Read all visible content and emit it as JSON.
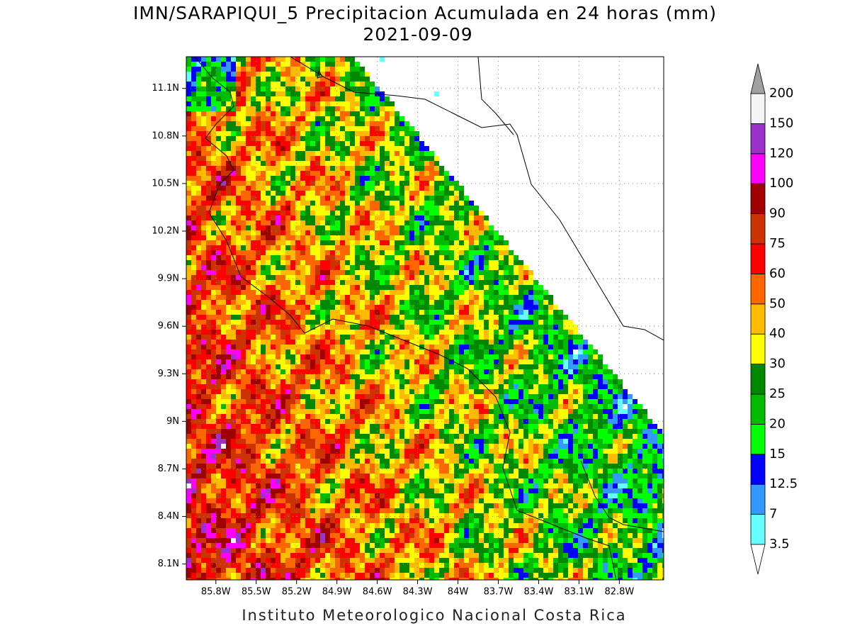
{
  "header": {
    "title": "IMN/SARAPIQUI_5 Precipitacion Acumulada en 24 horas (mm)",
    "subtitle": "2021-09-09"
  },
  "map": {
    "xlim": [
      -86.02,
      -82.47
    ],
    "ylim": [
      8.0,
      11.3
    ],
    "xticks": [
      {
        "value": -85.8,
        "label": "85.8W"
      },
      {
        "value": -85.5,
        "label": "85.5W"
      },
      {
        "value": -85.2,
        "label": "85.2W"
      },
      {
        "value": -84.9,
        "label": "84.9W"
      },
      {
        "value": -84.6,
        "label": "84.6W"
      },
      {
        "value": -84.3,
        "label": "84.3W"
      },
      {
        "value": -84.0,
        "label": "84W"
      },
      {
        "value": -83.7,
        "label": "83.7W"
      },
      {
        "value": -83.4,
        "label": "83.4W"
      },
      {
        "value": -83.1,
        "label": "83.1W"
      },
      {
        "value": -82.8,
        "label": "82.8W"
      }
    ],
    "yticks": [
      {
        "value": 8.1,
        "label": "8.1N"
      },
      {
        "value": 8.4,
        "label": "8.4N"
      },
      {
        "value": 8.7,
        "label": "8.7N"
      },
      {
        "value": 9.0,
        "label": "9N"
      },
      {
        "value": 9.3,
        "label": "9.3N"
      },
      {
        "value": 9.6,
        "label": "9.6N"
      },
      {
        "value": 9.9,
        "label": "9.9N"
      },
      {
        "value": 10.2,
        "label": "10.2N"
      },
      {
        "value": 10.5,
        "label": "10.5N"
      },
      {
        "value": 10.8,
        "label": "10.8N"
      },
      {
        "value": 11.1,
        "label": "11.1N"
      }
    ],
    "grid": true
  },
  "colorbar": {
    "levels": [
      3.5,
      7,
      12.5,
      15,
      20,
      25,
      30,
      40,
      50,
      60,
      75,
      90,
      100,
      120,
      150,
      200
    ],
    "colors": [
      "#66ffff",
      "#3399ff",
      "#0000ff",
      "#00ff00",
      "#00bb00",
      "#008800",
      "#ffff00",
      "#ffbb00",
      "#ff6600",
      "#ff0000",
      "#cc3300",
      "#a00000",
      "#ff00ff",
      "#9933cc",
      "#f5f5f5"
    ],
    "under_color": "#ffffff",
    "over_color": "#a0a0a0"
  },
  "footer": "Instituto Meteorologico Nacional Costa Rica"
}
